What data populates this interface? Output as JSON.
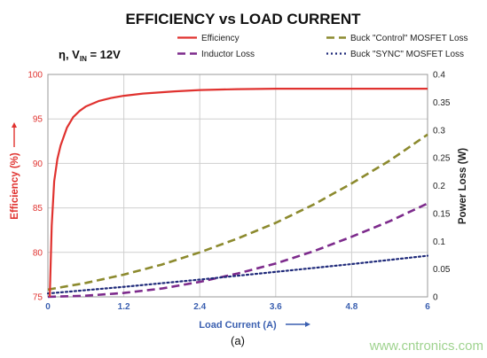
{
  "chart_data": {
    "type": "line",
    "title": "EFFICIENCY vs LOAD CURRENT",
    "annotation": {
      "main": "η, V",
      "subscript": "IN",
      "tail": " = 12V"
    },
    "xlabel": "Load Current (A)",
    "ylabel_left": "Efficiency (%)",
    "ylabel_right": "Power Loss (W)",
    "xlim": [
      0,
      6
    ],
    "ylim_left": [
      75,
      100
    ],
    "ylim_right": [
      0,
      0.4
    ],
    "xticks": [
      "0",
      "1.2",
      "2.4",
      "3.6",
      "4.8",
      "6"
    ],
    "yticks_left": [
      "75",
      "80",
      "85",
      "90",
      "95",
      "100"
    ],
    "yticks_right": [
      "0",
      "0.05",
      "0.1",
      "0.15",
      "0.2",
      "0.25",
      "0.3",
      "0.35",
      "0.4"
    ],
    "grid": true,
    "legend_position": "top",
    "series": [
      {
        "name": "Efficiency",
        "axis": "left",
        "color": "#e0322f",
        "dash": "solid",
        "x": [
          0.03,
          0.06,
          0.1,
          0.15,
          0.2,
          0.3,
          0.4,
          0.5,
          0.6,
          0.8,
          1.0,
          1.2,
          1.5,
          2.0,
          2.4,
          3.0,
          3.6,
          4.0,
          4.8,
          5.5,
          6.0
        ],
        "values": [
          75.0,
          83.0,
          88.0,
          90.5,
          92.0,
          94.0,
          95.2,
          95.9,
          96.4,
          97.0,
          97.35,
          97.6,
          97.85,
          98.1,
          98.25,
          98.35,
          98.4,
          98.4,
          98.4,
          98.4,
          98.4
        ]
      },
      {
        "name": "Inductor Loss",
        "axis": "right",
        "color": "#7d2b8c",
        "dash": "long",
        "x": [
          0,
          0.6,
          1.2,
          1.8,
          2.4,
          3.0,
          3.6,
          4.2,
          4.8,
          5.4,
          6.0
        ],
        "values": [
          0.0,
          0.002,
          0.007,
          0.015,
          0.027,
          0.042,
          0.06,
          0.082,
          0.108,
          0.136,
          0.168
        ]
      },
      {
        "name": "Buck \"Control\" MOSFET Loss",
        "axis": "right",
        "color": "#8c8a2e",
        "dash": "long",
        "x": [
          0,
          0.6,
          1.2,
          1.8,
          2.4,
          3.0,
          3.6,
          4.2,
          4.8,
          5.4,
          6.0
        ],
        "values": [
          0.013,
          0.025,
          0.04,
          0.058,
          0.08,
          0.105,
          0.133,
          0.166,
          0.204,
          0.245,
          0.292
        ]
      },
      {
        "name": "Buck \"SYNC\" MOSFET Loss",
        "axis": "right",
        "color": "#1f2a7a",
        "dash": "dot",
        "x": [
          0,
          1.2,
          2.4,
          3.6,
          4.8,
          6.0
        ],
        "values": [
          0.006,
          0.018,
          0.031,
          0.045,
          0.059,
          0.074
        ]
      }
    ],
    "legend": [
      {
        "label": "Efficiency",
        "color": "#e0322f",
        "dash": "solid",
        "column": 0
      },
      {
        "label": "Inductor Loss",
        "color": "#7d2b8c",
        "dash": "long",
        "column": 0
      },
      {
        "label": "Buck \"Control\" MOSFET Loss",
        "color": "#8c8a2e",
        "dash": "long",
        "column": 1
      },
      {
        "label": "Buck \"SYNC\" MOSFET Loss",
        "color": "#1f2a7a",
        "dash": "dot",
        "column": 1
      }
    ],
    "caption": "(a)"
  },
  "watermark": "www.cntronics.com",
  "colors": {
    "grid": "#cfcfcf",
    "efficiency_axis": "#e0322f",
    "x_axis_text": "#3a5fb0"
  }
}
